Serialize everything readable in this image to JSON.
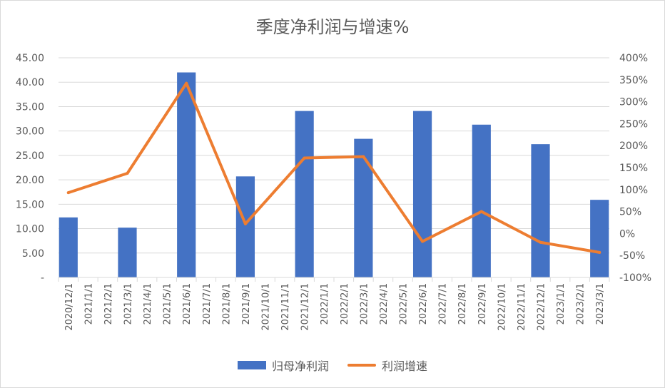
{
  "chart_data": {
    "type": "bar",
    "title": "季度净利润与增速%",
    "categories": [
      "2020/12/1",
      "2021/1/1",
      "2021/2/1",
      "2021/3/1",
      "2021/4/1",
      "2021/5/1",
      "2021/6/1",
      "2021/7/1",
      "2021/8/1",
      "2021/9/1",
      "2021/10/1",
      "2021/11/1",
      "2021/12/1",
      "2022/1/1",
      "2022/2/1",
      "2022/3/1",
      "2022/4/1",
      "2022/5/1",
      "2022/6/1",
      "2022/7/1",
      "2022/8/1",
      "2022/9/1",
      "2022/10/1",
      "2022/11/1",
      "2022/12/1",
      "2023/1/1",
      "2023/2/1",
      "2023/3/1"
    ],
    "series": [
      {
        "name": "归母净利润",
        "kind": "bar",
        "axis": "left",
        "color": "#4472C4",
        "values": [
          12.3,
          null,
          null,
          10.2,
          null,
          null,
          42.0,
          null,
          null,
          20.7,
          null,
          null,
          34.1,
          null,
          null,
          28.4,
          null,
          null,
          34.1,
          null,
          null,
          31.3,
          null,
          null,
          27.3,
          null,
          null,
          15.9
        ]
      },
      {
        "name": "利润增速",
        "kind": "line",
        "axis": "right",
        "color": "#ED7D31",
        "points": [
          {
            "x": "2020/12/1",
            "y": 93
          },
          {
            "x": "2021/3/1",
            "y": 137
          },
          {
            "x": "2021/6/1",
            "y": 342
          },
          {
            "x": "2021/9/1",
            "y": 22
          },
          {
            "x": "2021/12/1",
            "y": 172
          },
          {
            "x": "2022/3/1",
            "y": 175
          },
          {
            "x": "2022/6/1",
            "y": -18
          },
          {
            "x": "2022/9/1",
            "y": 50
          },
          {
            "x": "2022/12/1",
            "y": -20
          },
          {
            "x": "2023/3/1",
            "y": -43
          }
        ]
      }
    ],
    "y_left": {
      "min": 0,
      "max": 45,
      "step": 5,
      "tick_labels": [
        "-",
        "5.00",
        "10.00",
        "15.00",
        "20.00",
        "25.00",
        "30.00",
        "35.00",
        "40.00",
        "45.00"
      ]
    },
    "y_right": {
      "min": -100,
      "max": 400,
      "step": 50,
      "tick_labels": [
        "-100%",
        "-50%",
        "0%",
        "50%",
        "100%",
        "150%",
        "200%",
        "250%",
        "300%",
        "350%",
        "400%"
      ]
    },
    "grid": true,
    "legend_position": "bottom"
  }
}
